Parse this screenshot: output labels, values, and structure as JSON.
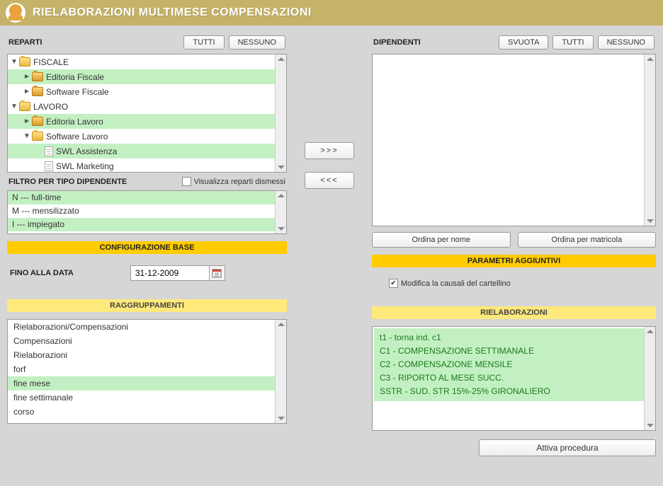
{
  "header": {
    "title": "RIELABORAZIONI MULTIMESE COMPENSAZIONI"
  },
  "reparti": {
    "label": "REPARTI",
    "btn_tutti": "TUTTI",
    "btn_nessuno": "NESSUNO",
    "tree": [
      {
        "label": "FISCALE",
        "arrow": "▼",
        "icon": "folder-open",
        "indent": 0,
        "sel": false
      },
      {
        "label": "Editoria Fiscale",
        "arrow": "►",
        "icon": "folder-closed",
        "indent": 1,
        "sel": true
      },
      {
        "label": "Software Fiscale",
        "arrow": "►",
        "icon": "folder-closed",
        "indent": 1,
        "sel": false
      },
      {
        "label": "LAVORO",
        "arrow": "▼",
        "icon": "folder-open",
        "indent": 0,
        "sel": false
      },
      {
        "label": "Editoria Lavoro",
        "arrow": "►",
        "icon": "folder-closed",
        "indent": 1,
        "sel": true
      },
      {
        "label": "Software Lavoro",
        "arrow": "▼",
        "icon": "folder-open",
        "indent": 1,
        "sel": false
      },
      {
        "label": "SWL Assistenza",
        "arrow": "",
        "icon": "doc",
        "indent": 2,
        "sel": true
      },
      {
        "label": "SWL Marketing",
        "arrow": "",
        "icon": "doc",
        "indent": 2,
        "sel": false
      }
    ]
  },
  "visualizza_dismessi": {
    "label": "Visualizza reparti dismessi",
    "checked": false
  },
  "filtro": {
    "label": "FILTRO PER TIPO DIPENDENTE",
    "rows": [
      {
        "label": "I --- impiegato",
        "sel": true
      },
      {
        "label": "M --- mensilizzato",
        "sel": false
      },
      {
        "label": "N --- full-time",
        "sel": true
      }
    ]
  },
  "bands": {
    "config_base": "CONFIGURAZIONE BASE",
    "raggruppamenti": "RAGGRUPPAMENTI",
    "parametri": "PARAMETRI AGGIUNTIVI",
    "rielaborazioni": "RIELABORAZIONI"
  },
  "fino_data": {
    "label": "FINO ALLA DATA",
    "value": "31-12-2009"
  },
  "raggruppamenti_list": [
    {
      "label": "Rielaborazioni/Compensazioni",
      "sel": false
    },
    {
      "label": "Compensazioni",
      "sel": false
    },
    {
      "label": "Rielaborazioni",
      "sel": false
    },
    {
      "label": "forf",
      "sel": false
    },
    {
      "label": "fine mese",
      "sel": true
    },
    {
      "label": "fine settimanale",
      "sel": false
    },
    {
      "label": "corso",
      "sel": false
    }
  ],
  "transfer": {
    "to_right": ">>>",
    "to_left": "<<<"
  },
  "dipendenti": {
    "label": "DIPENDENTI",
    "btn_svuota": "SVUOTA",
    "btn_tutti": "TUTTI",
    "btn_nessuno": "NESSUNO",
    "ordina_nome": "Ordina per nome",
    "ordina_matricola": "Ordina per matricola"
  },
  "modifica_causali": {
    "label": "Modifica la causali del cartellino",
    "checked": true
  },
  "rielaborazioni_list": [
    "t1 - torna ind. c1",
    "C1 - COMPENSAZIONE SETTIMANALE",
    "C2 - COMPENSAZIONE MENSILE",
    "C3 - RIPORTO AL MESE SUCC.",
    "SSTR - SUD. STR 15%-25% GIRONALIERO"
  ],
  "attiva": "Attiva procedura"
}
